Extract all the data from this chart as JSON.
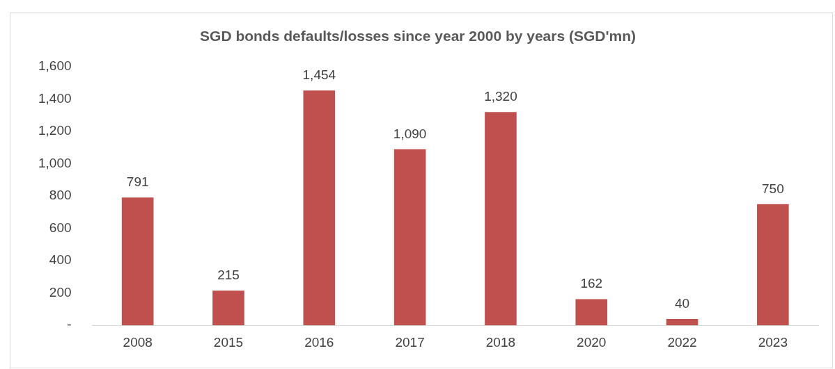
{
  "chart_data": {
    "type": "bar",
    "title": "SGD bonds defaults/losses since year 2000 by years (SGD'mn)",
    "categories": [
      "2008",
      "2015",
      "2016",
      "2017",
      "2018",
      "2020",
      "2022",
      "2023"
    ],
    "values": [
      791,
      215,
      1454,
      1090,
      1320,
      162,
      40,
      750
    ],
    "color": "#c0504d",
    "ylim": [
      0,
      1600
    ],
    "yticks": [
      {
        "value": 0,
        "label": "-"
      },
      200,
      400,
      600,
      800,
      {
        "value": 1000,
        "label": "1,000"
      },
      {
        "value": 1200,
        "label": "1,200"
      },
      {
        "value": 1400,
        "label": "1,400"
      },
      {
        "value": 1600,
        "label": "1,600"
      }
    ],
    "value_labels": [
      "791",
      "215",
      "1,454",
      "1,090",
      "1,320",
      "162",
      "40",
      "750"
    ],
    "grid": false,
    "legend": false
  }
}
